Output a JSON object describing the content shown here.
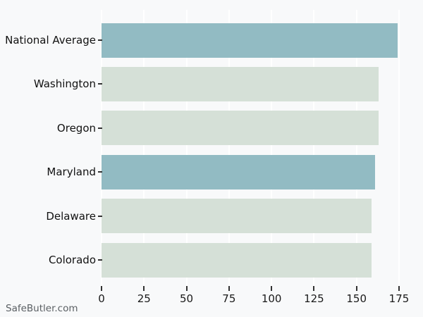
{
  "watermark": "SafeButler.com",
  "chart_data": {
    "type": "bar",
    "orientation": "horizontal",
    "title": "",
    "xlabel": "",
    "ylabel": "",
    "categories": [
      "National Average",
      "Washington",
      "Oregon",
      "Maryland",
      "Delaware",
      "Colorado"
    ],
    "values": [
      174,
      163,
      163,
      161,
      159,
      159
    ],
    "bar_colors": [
      "#92bbc3",
      "#d5e0d7",
      "#d5e0d7",
      "#92bbc3",
      "#d5e0d7",
      "#d5e0d7"
    ],
    "highlight_color": "#92bbc3",
    "muted_color": "#d5e0d7",
    "x_ticks": [
      0,
      25,
      50,
      75,
      100,
      125,
      150,
      175
    ],
    "xlim": [
      0,
      185
    ],
    "grid": "vertical",
    "gridline_color": "#ffffff",
    "background_color": "#f8f9fa",
    "legend": null
  }
}
